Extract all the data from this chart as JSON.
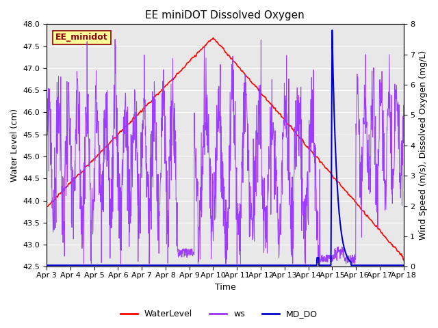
{
  "title": "EE miniDOT Dissolved Oxygen",
  "xlabel": "Time",
  "ylabel_left": "Water Level (cm)",
  "ylabel_right": "Wind Speed (m/s), Dissolved Oxygen (mg/L)",
  "annotation": "EE_minidot",
  "ylim_left": [
    42.5,
    48.0
  ],
  "ylim_right": [
    0.0,
    8.0
  ],
  "yticks_left": [
    42.5,
    43.0,
    43.5,
    44.0,
    44.5,
    45.0,
    45.5,
    46.0,
    46.5,
    47.0,
    47.5,
    48.0
  ],
  "yticks_right": [
    0.0,
    1.0,
    2.0,
    3.0,
    4.0,
    5.0,
    6.0,
    7.0,
    8.0
  ],
  "wl_color": "#FF0000",
  "ws_color": "#9933FF",
  "do_color": "#0000CC",
  "legend_labels": [
    "WaterLevel",
    "ws",
    "MD_DO"
  ],
  "annotation_bg": "#FFFF99",
  "annotation_border": "#8B0000",
  "annotation_text_color": "#8B0000",
  "plot_bg_color": "#e8e8e8",
  "grid_color": "#ffffff",
  "title_fontsize": 11,
  "axis_fontsize": 9,
  "tick_fontsize": 8,
  "legend_fontsize": 9
}
